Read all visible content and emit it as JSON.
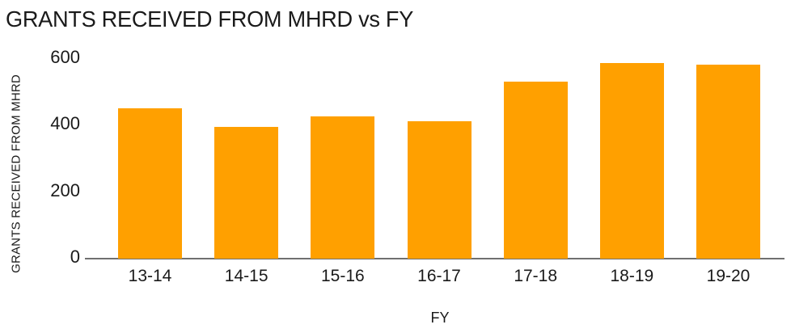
{
  "chart_data": {
    "type": "bar",
    "title": "GRANTS RECEIVED FROM MHRD vs FY",
    "xlabel": "FY",
    "ylabel": "GRANTS RECEIVED FROM MHRD",
    "categories": [
      "13-14",
      "14-15",
      "15-16",
      "16-17",
      "17-18",
      "18-19",
      "19-20"
    ],
    "values": [
      450,
      395,
      425,
      410,
      530,
      585,
      580
    ],
    "yticks": [
      0,
      200,
      400,
      600
    ],
    "ylim": [
      0,
      620
    ],
    "grid": false,
    "legend": false,
    "bar_color": "#FFA000",
    "axis_color": "#707070",
    "text_color": "#1A1A1A",
    "background_color": "#FFFFFF"
  }
}
